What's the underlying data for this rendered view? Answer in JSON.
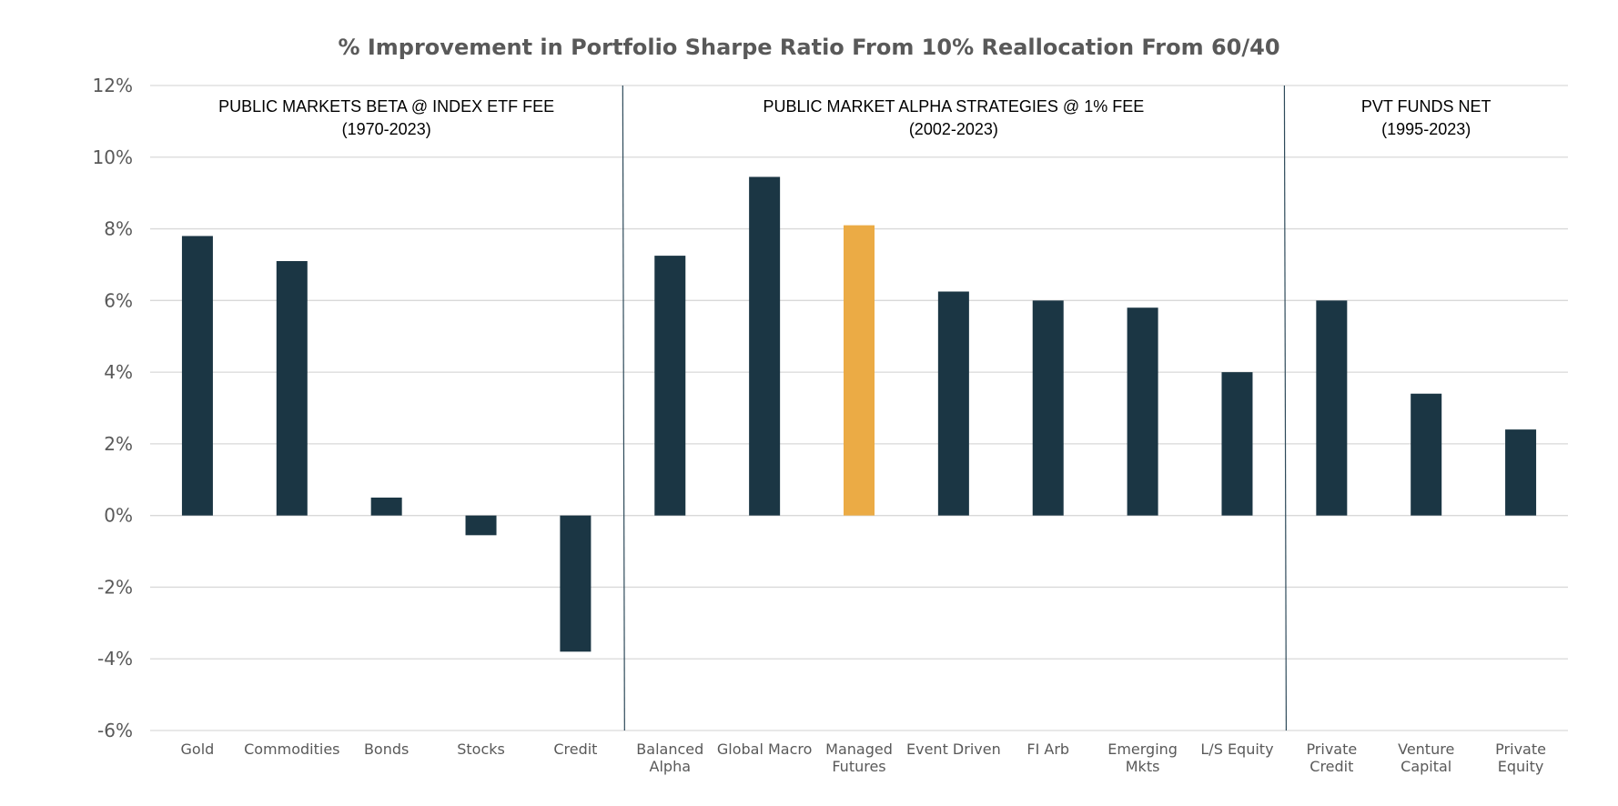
{
  "chart_data": {
    "type": "bar",
    "title": "% Improvement in Portfolio Sharpe Ratio From 10% Reallocation From 60/40",
    "xlabel": "",
    "ylabel": "",
    "ylim": [
      -6,
      12
    ],
    "yticks": [
      12,
      10,
      8,
      6,
      4,
      2,
      0,
      -2,
      -4,
      -6
    ],
    "ytick_labels": [
      "12%",
      "10%",
      "8%",
      "6%",
      "4%",
      "2%",
      "0%",
      "-2%",
      "-4%",
      "-6%"
    ],
    "grid": true,
    "categories": [
      {
        "lines": [
          "Gold"
        ],
        "value": 7.8,
        "highlight": false
      },
      {
        "lines": [
          "Commodities"
        ],
        "value": 7.1,
        "highlight": false
      },
      {
        "lines": [
          "Bonds"
        ],
        "value": 0.5,
        "highlight": false
      },
      {
        "lines": [
          "Stocks"
        ],
        "value": -0.55,
        "highlight": false
      },
      {
        "lines": [
          "Credit"
        ],
        "value": -3.8,
        "highlight": false
      },
      {
        "lines": [
          "Balanced",
          "Alpha"
        ],
        "value": 7.25,
        "highlight": false
      },
      {
        "lines": [
          "Global Macro"
        ],
        "value": 9.45,
        "highlight": false
      },
      {
        "lines": [
          "Managed",
          "Futures"
        ],
        "value": 8.1,
        "highlight": true
      },
      {
        "lines": [
          "Event Driven"
        ],
        "value": 6.25,
        "highlight": false
      },
      {
        "lines": [
          "FI Arb"
        ],
        "value": 6.0,
        "highlight": false
      },
      {
        "lines": [
          "Emerging",
          "Mkts"
        ],
        "value": 5.8,
        "highlight": false
      },
      {
        "lines": [
          "L/S Equity"
        ],
        "value": 4.0,
        "highlight": false
      },
      {
        "lines": [
          "Private",
          "Credit"
        ],
        "value": 6.0,
        "highlight": false
      },
      {
        "lines": [
          "Venture",
          "Capital"
        ],
        "value": 3.4,
        "highlight": false
      },
      {
        "lines": [
          "Private",
          "Equity"
        ],
        "value": 2.4,
        "highlight": false
      }
    ],
    "groups": [
      {
        "lines": [
          "PUBLIC MARKETS BETA @ INDEX ETF FEE",
          "(1970-2023)"
        ],
        "from": 0,
        "to": 4
      },
      {
        "lines": [
          "PUBLIC MARKET ALPHA STRATEGIES @ 1% FEE",
          "(2002-2023)"
        ],
        "from": 5,
        "to": 11
      },
      {
        "lines": [
          "PVT FUNDS NET",
          "(1995-2023)"
        ],
        "from": 12,
        "to": 14
      }
    ],
    "colors": {
      "bar": "#1b3644",
      "highlight": "#ebab45",
      "grid": "#d9d9d9",
      "divider": "#2e4a5a",
      "text": "#595959"
    }
  }
}
